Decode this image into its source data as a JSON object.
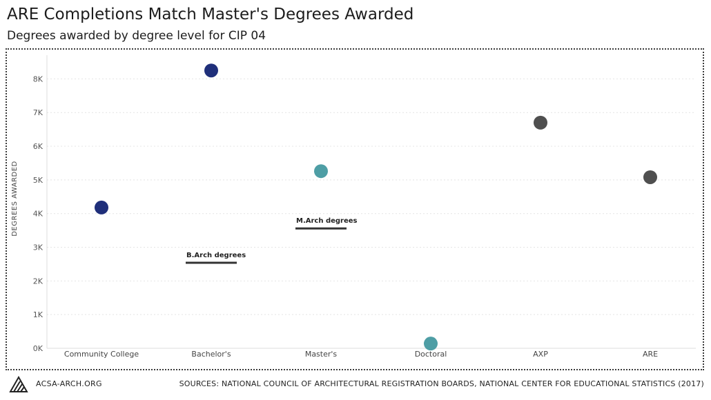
{
  "header": {
    "title": "ARE Completions Match Master's Degrees Awarded",
    "subtitle": "Degrees awarded by degree level for CIP 04"
  },
  "footer": {
    "site": "ACSA-ARCH.ORG",
    "sources": "SOURCES: NATIONAL COUNCIL OF ARCHITECTURAL REGISTRATION BOARDS, NATIONAL CENTER FOR EDUCATIONAL STATISTICS (2017)"
  },
  "chart_data": {
    "type": "scatter",
    "title": "ARE Completions Match Master's Degrees Awarded",
    "subtitle": "Degrees awarded by degree level for CIP 04",
    "ylabel": "DEGREES AWARDED",
    "xlabel": "",
    "categories": [
      "Community College",
      "Bachelor's",
      "Master's",
      "Doctoral",
      "AXP",
      "ARE"
    ],
    "values": [
      4180,
      8250,
      5260,
      140,
      6700,
      5080
    ],
    "point_colors": [
      "#1f2f7a",
      "#1f2f7a",
      "#4e9ea5",
      "#4e9ea5",
      "#4f4f4f",
      "#4f4f4f"
    ],
    "ylim": [
      0,
      8500
    ],
    "yticks": [
      0,
      1000,
      2000,
      3000,
      4000,
      5000,
      6000,
      7000,
      8000
    ],
    "ytick_labels": [
      "0K",
      "1K",
      "2K",
      "3K",
      "4K",
      "5K",
      "6K",
      "7K",
      "8K"
    ],
    "grid": true,
    "annotations": [
      {
        "text": "B.Arch degrees",
        "category": "Bachelor's",
        "value": 2540
      },
      {
        "text": "M.Arch degrees",
        "category": "Master's",
        "value": 3560
      }
    ]
  }
}
